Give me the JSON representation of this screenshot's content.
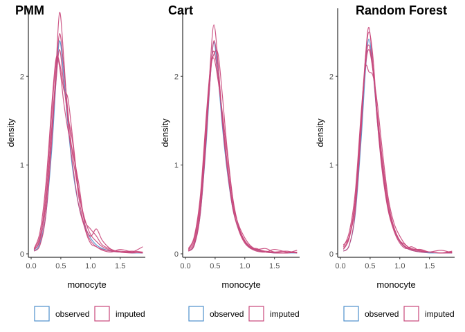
{
  "colors": {
    "observed": "#4e8fcc",
    "imputed": "#c8467a",
    "axis": "#000000",
    "tick_text": "#4d4d4d"
  },
  "chart_data": [
    {
      "type": "line",
      "title": "PMM",
      "xlabel": "monocyte",
      "ylabel": "density",
      "xlim": [
        0.0,
        1.9
      ],
      "ylim": [
        0,
        2.75
      ],
      "x_ticks": [
        "0.0",
        "0.5",
        "1.0",
        "1.5"
      ],
      "x_tick_values": [
        0.0,
        0.5,
        1.0,
        1.5
      ],
      "y_ticks": [
        "0",
        "1",
        "2"
      ],
      "y_tick_values": [
        0,
        1,
        2
      ],
      "grid": false,
      "legend": {
        "position": "bottom",
        "entries": [
          "observed",
          "imputed"
        ]
      },
      "series": [
        {
          "name": "observed",
          "x": [
            0.05,
            0.15,
            0.25,
            0.35,
            0.42,
            0.48,
            0.55,
            0.62,
            0.7,
            0.8,
            0.9,
            1.0,
            1.1,
            1.2,
            1.35,
            1.5,
            1.7,
            1.88
          ],
          "y": [
            0.03,
            0.12,
            0.45,
            1.2,
            1.95,
            2.4,
            2.0,
            1.45,
            0.95,
            0.55,
            0.32,
            0.18,
            0.1,
            0.06,
            0.03,
            0.02,
            0.01,
            0.01
          ]
        },
        {
          "name": "imputed",
          "x": [
            0.05,
            0.15,
            0.25,
            0.35,
            0.42,
            0.48,
            0.55,
            0.62,
            0.7,
            0.8,
            0.9,
            1.0,
            1.1,
            1.2,
            1.35,
            1.5,
            1.7,
            1.88
          ],
          "y": [
            0.03,
            0.1,
            0.45,
            1.3,
            2.1,
            2.72,
            2.2,
            1.5,
            1.0,
            0.55,
            0.3,
            0.15,
            0.08,
            0.05,
            0.03,
            0.02,
            0.02,
            0.08
          ]
        },
        {
          "name": "imputed",
          "x": [
            0.05,
            0.15,
            0.25,
            0.35,
            0.42,
            0.48,
            0.55,
            0.62,
            0.7,
            0.8,
            0.9,
            1.0,
            1.1,
            1.2,
            1.35,
            1.5,
            1.7,
            1.88
          ],
          "y": [
            0.05,
            0.2,
            0.6,
            1.45,
            2.05,
            2.48,
            2.1,
            1.6,
            1.1,
            0.7,
            0.38,
            0.28,
            0.2,
            0.1,
            0.05,
            0.02,
            0.01,
            0.02
          ]
        },
        {
          "name": "imputed",
          "x": [
            0.05,
            0.15,
            0.25,
            0.35,
            0.42,
            0.48,
            0.55,
            0.62,
            0.7,
            0.8,
            0.9,
            1.0,
            1.1,
            1.2,
            1.35,
            1.5,
            1.7,
            1.88
          ],
          "y": [
            0.06,
            0.25,
            0.8,
            1.7,
            2.2,
            2.15,
            1.85,
            1.75,
            1.3,
            0.72,
            0.4,
            0.22,
            0.14,
            0.08,
            0.04,
            0.03,
            0.02,
            0.01
          ]
        },
        {
          "name": "imputed",
          "x": [
            0.05,
            0.15,
            0.25,
            0.35,
            0.42,
            0.48,
            0.55,
            0.62,
            0.7,
            0.8,
            0.9,
            1.0,
            1.1,
            1.2,
            1.35,
            1.5,
            1.7,
            1.88
          ],
          "y": [
            0.04,
            0.18,
            0.7,
            1.6,
            2.18,
            2.1,
            1.7,
            1.4,
            1.15,
            0.8,
            0.35,
            0.2,
            0.28,
            0.15,
            0.05,
            0.02,
            0.03,
            0.02
          ]
        },
        {
          "name": "imputed",
          "x": [
            0.05,
            0.15,
            0.25,
            0.35,
            0.42,
            0.48,
            0.55,
            0.62,
            0.7,
            0.8,
            0.9,
            1.0,
            1.1,
            1.2,
            1.35,
            1.5,
            1.7,
            1.88
          ],
          "y": [
            0.05,
            0.15,
            0.55,
            1.4,
            1.95,
            2.3,
            1.9,
            1.55,
            1.25,
            0.65,
            0.3,
            0.12,
            0.08,
            0.04,
            0.02,
            0.05,
            0.02,
            0.01
          ]
        }
      ]
    },
    {
      "type": "line",
      "title": "Cart",
      "xlabel": "monocyte",
      "ylabel": "density",
      "xlim": [
        0.0,
        1.9
      ],
      "ylim": [
        0,
        2.75
      ],
      "x_ticks": [
        "0.0",
        "0.5",
        "1.0",
        "1.5"
      ],
      "x_tick_values": [
        0.0,
        0.5,
        1.0,
        1.5
      ],
      "y_ticks": [
        "0",
        "1",
        "2"
      ],
      "y_tick_values": [
        0,
        1,
        2
      ],
      "grid": false,
      "legend": {
        "position": "bottom",
        "entries": [
          "observed",
          "imputed"
        ]
      },
      "series": [
        {
          "name": "observed",
          "x": [
            0.05,
            0.15,
            0.25,
            0.35,
            0.42,
            0.48,
            0.55,
            0.62,
            0.7,
            0.8,
            0.9,
            1.0,
            1.1,
            1.2,
            1.35,
            1.5,
            1.7,
            1.88
          ],
          "y": [
            0.03,
            0.1,
            0.45,
            1.25,
            2.0,
            2.38,
            2.0,
            1.45,
            0.95,
            0.5,
            0.28,
            0.14,
            0.07,
            0.04,
            0.02,
            0.01,
            0.01,
            0.01
          ]
        },
        {
          "name": "imputed",
          "x": [
            0.05,
            0.15,
            0.25,
            0.35,
            0.42,
            0.48,
            0.55,
            0.62,
            0.7,
            0.8,
            0.9,
            1.0,
            1.1,
            1.2,
            1.35,
            1.5,
            1.7,
            1.88
          ],
          "y": [
            0.03,
            0.1,
            0.45,
            1.3,
            2.15,
            2.58,
            2.15,
            1.5,
            0.98,
            0.5,
            0.26,
            0.12,
            0.06,
            0.03,
            0.02,
            0.05,
            0.02,
            0.01
          ]
        },
        {
          "name": "imputed",
          "x": [
            0.05,
            0.15,
            0.25,
            0.35,
            0.42,
            0.48,
            0.55,
            0.62,
            0.7,
            0.8,
            0.9,
            1.0,
            1.1,
            1.2,
            1.35,
            1.5,
            1.7,
            1.88
          ],
          "y": [
            0.05,
            0.18,
            0.6,
            1.5,
            2.08,
            2.2,
            1.95,
            1.6,
            1.15,
            0.6,
            0.3,
            0.15,
            0.08,
            0.05,
            0.06,
            0.02,
            0.01,
            0.04
          ]
        },
        {
          "name": "imputed",
          "x": [
            0.05,
            0.15,
            0.25,
            0.35,
            0.42,
            0.48,
            0.55,
            0.62,
            0.7,
            0.8,
            0.9,
            1.0,
            1.1,
            1.2,
            1.35,
            1.5,
            1.7,
            1.88
          ],
          "y": [
            0.04,
            0.15,
            0.55,
            1.4,
            2.05,
            2.25,
            2.25,
            1.8,
            1.2,
            0.62,
            0.3,
            0.14,
            0.07,
            0.04,
            0.02,
            0.02,
            0.03,
            0.01
          ]
        },
        {
          "name": "imputed",
          "x": [
            0.05,
            0.15,
            0.25,
            0.35,
            0.42,
            0.48,
            0.55,
            0.62,
            0.7,
            0.8,
            0.9,
            1.0,
            1.1,
            1.2,
            1.35,
            1.5,
            1.7,
            1.88
          ],
          "y": [
            0.06,
            0.2,
            0.65,
            1.55,
            2.1,
            2.28,
            2.0,
            1.55,
            1.05,
            0.55,
            0.32,
            0.18,
            0.09,
            0.05,
            0.03,
            0.02,
            0.01,
            0.02
          ]
        },
        {
          "name": "imputed",
          "x": [
            0.05,
            0.15,
            0.25,
            0.35,
            0.42,
            0.48,
            0.55,
            0.62,
            0.7,
            0.8,
            0.9,
            1.0,
            1.1,
            1.2,
            1.35,
            1.5,
            1.7,
            1.88
          ],
          "y": [
            0.03,
            0.12,
            0.5,
            1.35,
            2.0,
            2.4,
            2.1,
            1.55,
            1.0,
            0.52,
            0.27,
            0.13,
            0.06,
            0.06,
            0.02,
            0.01,
            0.01,
            0.02
          ]
        }
      ]
    },
    {
      "type": "line",
      "title": "Random Forest",
      "xlabel": "monocyte",
      "ylabel": "density",
      "xlim": [
        0.0,
        1.9
      ],
      "ylim": [
        0,
        2.75
      ],
      "x_ticks": [
        "0.0",
        "0.5",
        "1.0",
        "1.5"
      ],
      "x_tick_values": [
        0.0,
        0.5,
        1.0,
        1.5
      ],
      "y_ticks": [
        "0",
        "1",
        "2"
      ],
      "y_tick_values": [
        0,
        1,
        2
      ],
      "grid": false,
      "legend": {
        "position": "bottom",
        "entries": [
          "observed",
          "imputed"
        ]
      },
      "series": [
        {
          "name": "observed",
          "x": [
            0.05,
            0.15,
            0.25,
            0.35,
            0.42,
            0.48,
            0.55,
            0.62,
            0.7,
            0.8,
            0.9,
            1.0,
            1.1,
            1.2,
            1.35,
            1.5,
            1.7,
            1.88
          ],
          "y": [
            0.03,
            0.1,
            0.45,
            1.3,
            2.05,
            2.42,
            2.05,
            1.5,
            0.98,
            0.52,
            0.28,
            0.14,
            0.07,
            0.04,
            0.02,
            0.01,
            0.01,
            0.01
          ]
        },
        {
          "name": "imputed",
          "x": [
            0.05,
            0.15,
            0.25,
            0.35,
            0.42,
            0.48,
            0.55,
            0.62,
            0.7,
            0.8,
            0.9,
            1.0,
            1.1,
            1.2,
            1.35,
            1.5,
            1.7,
            1.88
          ],
          "y": [
            0.03,
            0.1,
            0.48,
            1.4,
            2.2,
            2.55,
            2.1,
            1.5,
            0.95,
            0.5,
            0.26,
            0.12,
            0.06,
            0.08,
            0.03,
            0.02,
            0.01,
            0.02
          ]
        },
        {
          "name": "imputed",
          "x": [
            0.05,
            0.15,
            0.25,
            0.35,
            0.42,
            0.48,
            0.55,
            0.62,
            0.7,
            0.8,
            0.9,
            1.0,
            1.1,
            1.2,
            1.35,
            1.5,
            1.7,
            1.88
          ],
          "y": [
            0.08,
            0.25,
            0.7,
            1.6,
            2.1,
            2.05,
            2.0,
            1.7,
            1.2,
            0.65,
            0.35,
            0.2,
            0.1,
            0.06,
            0.04,
            0.02,
            0.01,
            0.01
          ]
        },
        {
          "name": "imputed",
          "x": [
            0.05,
            0.15,
            0.25,
            0.35,
            0.42,
            0.48,
            0.55,
            0.62,
            0.7,
            0.8,
            0.9,
            1.0,
            1.1,
            1.2,
            1.35,
            1.5,
            1.7,
            1.88
          ],
          "y": [
            0.05,
            0.18,
            0.6,
            1.55,
            2.2,
            2.5,
            2.2,
            1.55,
            1.0,
            0.52,
            0.28,
            0.14,
            0.07,
            0.04,
            0.02,
            0.02,
            0.04,
            0.01
          ]
        },
        {
          "name": "imputed",
          "x": [
            0.05,
            0.15,
            0.25,
            0.35,
            0.42,
            0.48,
            0.55,
            0.62,
            0.7,
            0.8,
            0.9,
            1.0,
            1.1,
            1.2,
            1.35,
            1.5,
            1.7,
            1.88
          ],
          "y": [
            0.06,
            0.2,
            0.62,
            1.5,
            2.1,
            2.3,
            2.05,
            1.6,
            1.1,
            0.6,
            0.3,
            0.15,
            0.1,
            0.05,
            0.05,
            0.02,
            0.01,
            0.03
          ]
        },
        {
          "name": "imputed",
          "x": [
            0.05,
            0.15,
            0.25,
            0.35,
            0.42,
            0.48,
            0.55,
            0.62,
            0.7,
            0.8,
            0.9,
            1.0,
            1.1,
            1.2,
            1.35,
            1.5,
            1.7,
            1.88
          ],
          "y": [
            0.1,
            0.2,
            0.55,
            1.45,
            2.15,
            2.35,
            2.05,
            1.55,
            1.05,
            0.55,
            0.3,
            0.15,
            0.08,
            0.05,
            0.03,
            0.02,
            0.01,
            0.02
          ]
        }
      ]
    }
  ]
}
